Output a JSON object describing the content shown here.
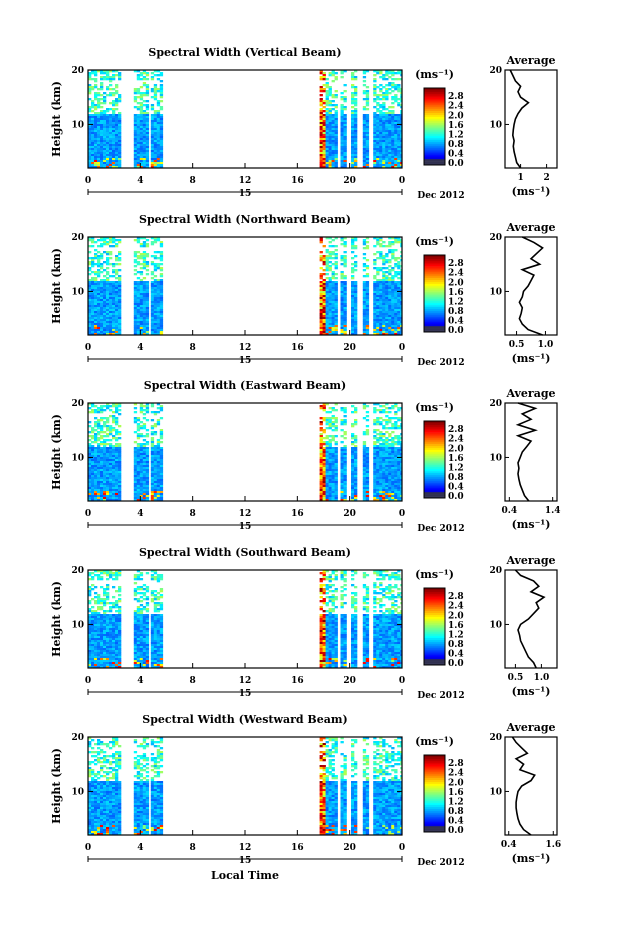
{
  "chart_data": [
    {
      "type": "heatmap",
      "title": "Spectral Width (Vertical Beam)",
      "ylabel": "Height (km)",
      "x_ticks": [
        "0",
        "4",
        "8",
        "12",
        "16",
        "20",
        "0"
      ],
      "y_ticks": [
        "20",
        "10"
      ],
      "date_day": "15",
      "date_label": "Dec 2012",
      "xlim": [
        0,
        24
      ],
      "ylim": [
        2,
        20
      ],
      "data_segments_hours": [
        [
          0,
          2.3
        ],
        [
          3.5,
          4.6
        ],
        [
          4.8,
          5.6
        ],
        [
          17.7,
          19.0
        ],
        [
          19.3,
          19.6
        ],
        [
          20.1,
          20.5
        ],
        [
          21.0,
          21.4
        ],
        [
          21.8,
          24
        ]
      ],
      "colorbar": {
        "unit": "(ms⁻¹)",
        "ticks": [
          "2.8",
          "2.4",
          "2.0",
          "1.6",
          "1.2",
          "0.8",
          "0.4",
          "0.0"
        ],
        "range": [
          0,
          3.0
        ]
      },
      "average": {
        "title": "Average",
        "xlabel": "(ms⁻¹)",
        "x_ticks": [
          "1",
          "2"
        ],
        "xlim": [
          0.4,
          2.4
        ],
        "y_ticks": [
          "20",
          "10"
        ],
        "profile": [
          [
            2,
            1.0
          ],
          [
            3,
            0.85
          ],
          [
            4,
            0.8
          ],
          [
            5,
            0.75
          ],
          [
            6,
            0.72
          ],
          [
            7,
            0.75
          ],
          [
            8,
            0.7
          ],
          [
            9,
            0.72
          ],
          [
            10,
            0.75
          ],
          [
            11,
            0.8
          ],
          [
            12,
            0.9
          ],
          [
            13,
            1.05
          ],
          [
            14,
            1.3
          ],
          [
            15,
            1.0
          ],
          [
            16,
            0.9
          ],
          [
            17,
            1.0
          ],
          [
            18,
            0.8
          ],
          [
            19,
            0.7
          ],
          [
            20,
            0.6
          ]
        ]
      }
    },
    {
      "type": "heatmap",
      "title": "Spectral Width (Northward Beam)",
      "ylabel": "Height (km)",
      "x_ticks": [
        "0",
        "4",
        "8",
        "12",
        "16",
        "20",
        "0"
      ],
      "y_ticks": [
        "20",
        "10"
      ],
      "date_day": "15",
      "date_label": "Dec 2012",
      "xlim": [
        0,
        24
      ],
      "ylim": [
        2,
        20
      ],
      "data_segments_hours": [
        [
          0,
          2.3
        ],
        [
          3.5,
          4.6
        ],
        [
          4.8,
          5.6
        ],
        [
          17.7,
          19.0
        ],
        [
          19.3,
          19.6
        ],
        [
          20.1,
          20.5
        ],
        [
          21.0,
          21.4
        ],
        [
          21.8,
          24
        ]
      ],
      "colorbar": {
        "unit": "(ms⁻¹)",
        "ticks": [
          "2.8",
          "2.4",
          "2.0",
          "1.6",
          "1.2",
          "0.8",
          "0.4",
          "0.0"
        ],
        "range": [
          0,
          3.0
        ]
      },
      "average": {
        "title": "Average",
        "xlabel": "(ms⁻¹)",
        "x_ticks": [
          "0.5",
          "1.0"
        ],
        "xlim": [
          0.3,
          1.2
        ],
        "y_ticks": [
          "20",
          "10"
        ],
        "profile": [
          [
            2,
            0.95
          ],
          [
            3,
            0.7
          ],
          [
            4,
            0.6
          ],
          [
            5,
            0.55
          ],
          [
            6,
            0.58
          ],
          [
            7,
            0.6
          ],
          [
            8,
            0.55
          ],
          [
            9,
            0.6
          ],
          [
            10,
            0.62
          ],
          [
            11,
            0.7
          ],
          [
            12,
            0.75
          ],
          [
            13,
            0.8
          ],
          [
            14,
            0.6
          ],
          [
            15,
            0.9
          ],
          [
            16,
            0.75
          ],
          [
            17,
            0.85
          ],
          [
            18,
            0.95
          ],
          [
            19,
            0.8
          ],
          [
            20,
            0.6
          ]
        ]
      }
    },
    {
      "type": "heatmap",
      "title": "Spectral Width (Eastward Beam)",
      "ylabel": "Height (km)",
      "x_ticks": [
        "0",
        "4",
        "8",
        "12",
        "16",
        "20",
        "0"
      ],
      "y_ticks": [
        "20",
        "10"
      ],
      "date_day": "15",
      "date_label": "Dec 2012",
      "xlim": [
        0,
        24
      ],
      "ylim": [
        2,
        20
      ],
      "data_segments_hours": [
        [
          0,
          2.3
        ],
        [
          3.5,
          4.6
        ],
        [
          4.8,
          5.6
        ],
        [
          17.7,
          19.0
        ],
        [
          19.3,
          19.6
        ],
        [
          20.1,
          20.5
        ],
        [
          21.0,
          21.4
        ],
        [
          21.8,
          24
        ]
      ],
      "colorbar": {
        "unit": "(ms⁻¹)",
        "ticks": [
          "2.8",
          "2.4",
          "2.0",
          "1.6",
          "1.2",
          "0.8",
          "0.4",
          "0.0"
        ],
        "range": [
          0,
          3.0
        ]
      },
      "average": {
        "title": "Average",
        "xlabel": "(ms⁻¹)",
        "x_ticks": [
          "0.4",
          "1.4"
        ],
        "xlim": [
          0.3,
          1.5
        ],
        "y_ticks": [
          "20",
          "10"
        ],
        "profile": [
          [
            2,
            0.85
          ],
          [
            3,
            0.75
          ],
          [
            4,
            0.7
          ],
          [
            5,
            0.65
          ],
          [
            6,
            0.62
          ],
          [
            7,
            0.6
          ],
          [
            8,
            0.62
          ],
          [
            9,
            0.6
          ],
          [
            10,
            0.65
          ],
          [
            11,
            0.7
          ],
          [
            12,
            0.8
          ],
          [
            13,
            0.9
          ],
          [
            14,
            0.6
          ],
          [
            15,
            1.0
          ],
          [
            16,
            0.6
          ],
          [
            17,
            0.9
          ],
          [
            18,
            0.7
          ],
          [
            19,
            1.0
          ],
          [
            20,
            0.6
          ]
        ]
      }
    },
    {
      "type": "heatmap",
      "title": "Spectral Width (Southward Beam)",
      "ylabel": "Height (km)",
      "x_ticks": [
        "0",
        "4",
        "8",
        "12",
        "16",
        "20",
        "0"
      ],
      "y_ticks": [
        "20",
        "10"
      ],
      "date_day": "15",
      "date_label": "Dec 2012",
      "xlim": [
        0,
        24
      ],
      "ylim": [
        2,
        20
      ],
      "data_segments_hours": [
        [
          0,
          2.3
        ],
        [
          3.5,
          4.6
        ],
        [
          4.8,
          5.6
        ],
        [
          17.7,
          19.0
        ],
        [
          19.3,
          19.6
        ],
        [
          20.1,
          20.5
        ],
        [
          21.0,
          21.4
        ],
        [
          21.8,
          24
        ]
      ],
      "colorbar": {
        "unit": "(ms⁻¹)",
        "ticks": [
          "2.8",
          "2.4",
          "2.0",
          "1.6",
          "1.2",
          "0.8",
          "0.4",
          "0.0"
        ],
        "range": [
          0,
          3.0
        ]
      },
      "average": {
        "title": "Average",
        "xlabel": "(ms⁻¹)",
        "x_ticks": [
          "0.5",
          "1.0"
        ],
        "xlim": [
          0.3,
          1.3
        ],
        "y_ticks": [
          "20",
          "10"
        ],
        "profile": [
          [
            2,
            0.9
          ],
          [
            3,
            0.85
          ],
          [
            4,
            0.75
          ],
          [
            5,
            0.7
          ],
          [
            6,
            0.65
          ],
          [
            7,
            0.6
          ],
          [
            8,
            0.58
          ],
          [
            9,
            0.55
          ],
          [
            10,
            0.6
          ],
          [
            11,
            0.75
          ],
          [
            12,
            0.85
          ],
          [
            13,
            0.95
          ],
          [
            14,
            0.9
          ],
          [
            15,
            1.05
          ],
          [
            16,
            0.8
          ],
          [
            17,
            0.95
          ],
          [
            18,
            0.85
          ],
          [
            19,
            0.6
          ],
          [
            20,
            0.5
          ]
        ]
      }
    },
    {
      "type": "heatmap",
      "title": "Spectral Width (Westward Beam)",
      "ylabel": "Height (km)",
      "x_ticks": [
        "0",
        "4",
        "8",
        "12",
        "16",
        "20",
        "0"
      ],
      "y_ticks": [
        "20",
        "10"
      ],
      "date_day": "15",
      "date_label": "Dec 2012",
      "xlabel": "Local Time",
      "xlim": [
        0,
        24
      ],
      "ylim": [
        2,
        20
      ],
      "data_segments_hours": [
        [
          0,
          2.3
        ],
        [
          3.5,
          4.6
        ],
        [
          4.8,
          5.6
        ],
        [
          17.7,
          19.0
        ],
        [
          19.3,
          19.6
        ],
        [
          20.1,
          20.5
        ],
        [
          21.0,
          21.4
        ],
        [
          21.8,
          24
        ]
      ],
      "colorbar": {
        "unit": "(ms⁻¹)",
        "ticks": [
          "2.8",
          "2.4",
          "2.0",
          "1.6",
          "1.2",
          "0.8",
          "0.4",
          "0.0"
        ],
        "range": [
          0,
          3.0
        ]
      },
      "average": {
        "title": "Average",
        "xlabel": "(ms⁻¹)",
        "x_ticks": [
          "0.4",
          "1.6"
        ],
        "xlim": [
          0.3,
          1.7
        ],
        "y_ticks": [
          "20",
          "10"
        ],
        "profile": [
          [
            2,
            1.0
          ],
          [
            3,
            0.8
          ],
          [
            4,
            0.7
          ],
          [
            5,
            0.65
          ],
          [
            6,
            0.62
          ],
          [
            7,
            0.6
          ],
          [
            8,
            0.6
          ],
          [
            9,
            0.62
          ],
          [
            10,
            0.65
          ],
          [
            11,
            0.75
          ],
          [
            12,
            1.0
          ],
          [
            13,
            1.1
          ],
          [
            14,
            0.7
          ],
          [
            15,
            0.8
          ],
          [
            16,
            0.6
          ],
          [
            17,
            0.9
          ],
          [
            18,
            0.75
          ],
          [
            19,
            0.6
          ],
          [
            20,
            0.5
          ]
        ]
      }
    }
  ]
}
